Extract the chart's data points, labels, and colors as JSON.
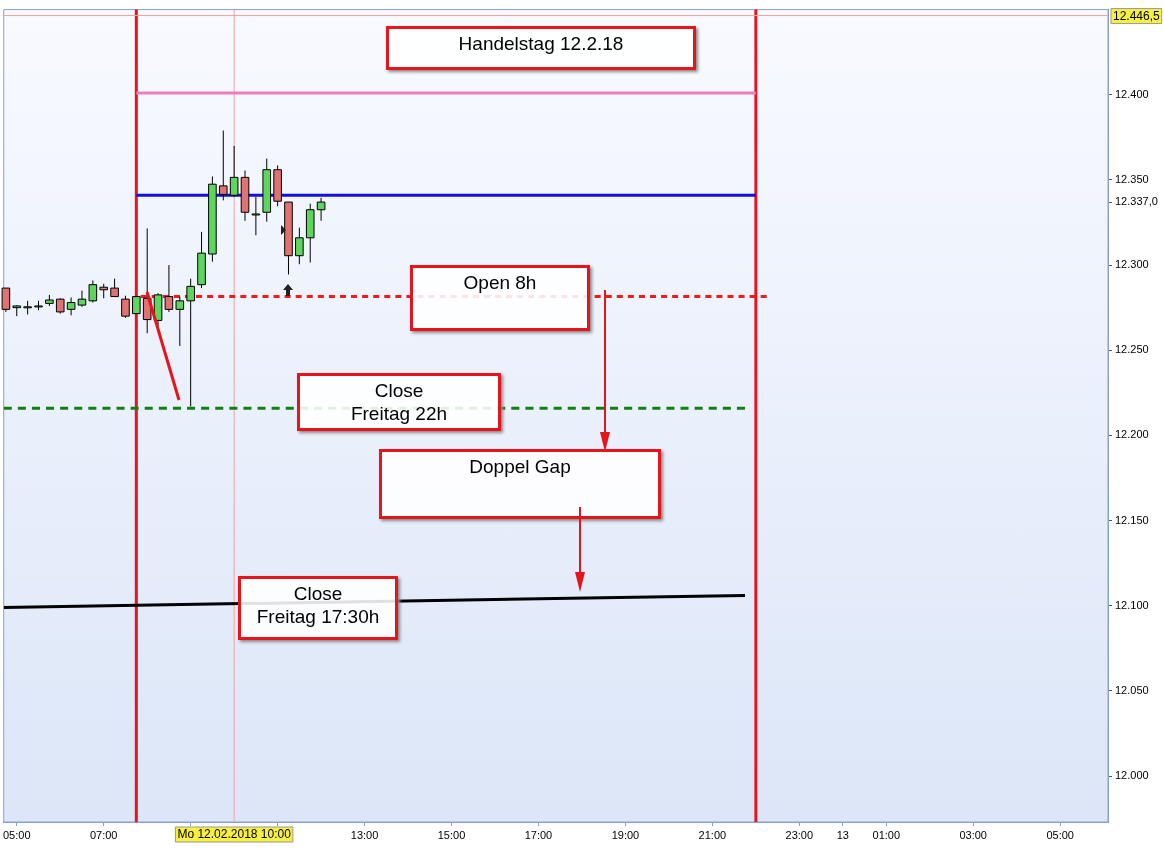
{
  "chart_data": {
    "type": "candlestick",
    "x": [
      "2018-02-12T04:45",
      "2018-02-12T05:00",
      "2018-02-12T05:15",
      "2018-02-12T05:30",
      "2018-02-12T05:45",
      "2018-02-12T06:00",
      "2018-02-12T06:15",
      "2018-02-12T06:30",
      "2018-02-12T06:45",
      "2018-02-12T07:00",
      "2018-02-12T07:15",
      "2018-02-12T07:30",
      "2018-02-12T07:45",
      "2018-02-12T08:00",
      "2018-02-12T08:15",
      "2018-02-12T08:30",
      "2018-02-12T08:45",
      "2018-02-12T09:00",
      "2018-02-12T09:15",
      "2018-02-12T09:30",
      "2018-02-12T09:45",
      "2018-02-12T10:00",
      "2018-02-12T10:15",
      "2018-02-12T10:30",
      "2018-02-12T10:45",
      "2018-02-12T11:00",
      "2018-02-12T11:15",
      "2018-02-12T11:30",
      "2018-02-12T11:45",
      "2018-02-12T12:00"
    ],
    "ohlc": [
      [
        12286.5,
        12286.5,
        12272.5,
        12274
      ],
      [
        12275,
        12276.5,
        12270,
        12276
      ],
      [
        12275.5,
        12279,
        12271,
        12275.5
      ],
      [
        12276,
        12279,
        12273.5,
        12276
      ],
      [
        12277.5,
        12282.5,
        12276,
        12279.5
      ],
      [
        12280,
        12280.5,
        12271.5,
        12272.5
      ],
      [
        12274,
        12281,
        12270.5,
        12278
      ],
      [
        12276.5,
        12285,
        12275.5,
        12280
      ],
      [
        12279,
        12291,
        12278,
        12288.5
      ],
      [
        12287,
        12289,
        12280.5,
        12285.5
      ],
      [
        12286.5,
        12292,
        12281.5,
        12281.5
      ],
      [
        12280,
        12282,
        12269,
        12270
      ],
      [
        12271.5,
        12281.5,
        12271.5,
        12281.5
      ],
      [
        12280.5,
        12321.5,
        12260,
        12268
      ],
      [
        12267.5,
        12283.5,
        12264.5,
        12282.5
      ],
      [
        12281.5,
        12300,
        12272.5,
        12274
      ],
      [
        12274,
        12281.5,
        12252.5,
        12279
      ],
      [
        12279,
        12292,
        12217,
        12287.5
      ],
      [
        12288.5,
        12319.5,
        12286.5,
        12307
      ],
      [
        12306.5,
        12352,
        12302,
        12347.5
      ],
      [
        12346.5,
        12379,
        12338,
        12341.5
      ],
      [
        12341,
        12370,
        12340,
        12351.5
      ],
      [
        12351.5,
        12355.5,
        12326,
        12331
      ],
      [
        12330,
        12340,
        12317.5,
        12330
      ],
      [
        12331,
        12362.5,
        12325.5,
        12356
      ],
      [
        12356,
        12358.5,
        12334.5,
        12337.5
      ],
      [
        12337,
        12337,
        12294.5,
        12305.5
      ],
      [
        12305.5,
        12322,
        12300.5,
        12316
      ],
      [
        12316,
        12336,
        12301.5,
        12332.5
      ],
      [
        12332.5,
        12339.5,
        12326,
        12337
      ]
    ],
    "series": [
      {
        "type": "line",
        "color": "#f07cc0",
        "x": [
          "2018-02-12T07:45",
          "2018-02-12T22:00"
        ],
        "values": [
          12401,
          12401
        ],
        "line_style": "solid"
      },
      {
        "type": "line",
        "color": "#1010e0",
        "x": [
          "2018-02-12T07:45",
          "2018-02-12T22:00"
        ],
        "values": [
          12341,
          12341
        ],
        "line_style": "solid"
      },
      {
        "type": "line",
        "color": "#ee1c1c",
        "x": [
          "2018-02-12T07:51",
          "2018-02-12T22:15"
        ],
        "values": [
          12281.5,
          12281.5
        ],
        "line_style": "dotted"
      },
      {
        "type": "line",
        "color": "#108010",
        "x": [
          "2018-02-12T04:42",
          "2018-02-12T21:45"
        ],
        "values": [
          12216,
          12216
        ],
        "line_style": "dashed"
      },
      {
        "type": "line",
        "color": "#000000",
        "x": [
          "2018-02-12T04:42",
          "2018-02-12T21:45"
        ],
        "values": [
          12099,
          12106
        ],
        "line_style": "solid"
      }
    ],
    "xlim": [
      "2018-02-12T04:42",
      "2018-02-13T06:06"
    ],
    "xticks": [
      {
        "value": "2018-02-12T05:00",
        "label": "05:00"
      },
      {
        "value": "2018-02-12T07:00",
        "label": "07:00"
      },
      {
        "value": "2018-02-12T09:00",
        "label": null
      },
      {
        "value": "2018-02-12T11:00",
        "label": null
      },
      {
        "value": "2018-02-12T13:00",
        "label": "13:00"
      },
      {
        "value": "2018-02-12T15:00",
        "label": "15:00"
      },
      {
        "value": "2018-02-12T17:00",
        "label": "17:00"
      },
      {
        "value": "2018-02-12T19:00",
        "label": "19:00"
      },
      {
        "value": "2018-02-12T21:00",
        "label": "21:00"
      },
      {
        "value": "2018-02-12T23:00",
        "label": "23:00"
      },
      {
        "value": "2018-02-13",
        "label": "13"
      },
      {
        "value": "2018-02-13T01:00",
        "label": "01:00"
      },
      {
        "value": "2018-02-13T03:00",
        "label": "03:00"
      },
      {
        "value": "2018-02-13T05:00",
        "label": "05:00"
      }
    ],
    "ylim": [
      11973,
      12450
    ],
    "yticks": [
      {
        "value": 12000,
        "label": "12.000"
      },
      {
        "value": 12050,
        "label": "12.050"
      },
      {
        "value": 12100,
        "label": "12.100"
      },
      {
        "value": 12150,
        "label": "12.150"
      },
      {
        "value": 12200,
        "label": "12.200"
      },
      {
        "value": 12250,
        "label": "12.250"
      },
      {
        "value": 12300,
        "label": "12.300"
      },
      {
        "value": 12337,
        "label": "12.337,0"
      },
      {
        "value": 12350,
        "label": "12.350"
      },
      {
        "value": 12400,
        "label": "12.400"
      }
    ],
    "ref_lines": [
      {
        "axis": "x",
        "value": "2018-02-12T07:45",
        "color": "#e8141c"
      },
      {
        "axis": "x",
        "value": "2018-02-12T22:00",
        "color": "#e8141c"
      },
      {
        "axis": "x",
        "value": "2018-02-12T10:00",
        "color": "#f4a0a0",
        "label": "Mo 12.02.2018 10:00"
      },
      {
        "axis": "y",
        "value": 12446.5,
        "color": "#f4a0a0",
        "label": "12.446,5"
      }
    ],
    "annotations": [
      "Handelstag 12.2.18",
      "Open 8h",
      "Close\nFreitag 22h",
      "Doppel Gap",
      "Close\nFreitag 17:30h"
    ],
    "grid": false,
    "legend": false
  }
}
